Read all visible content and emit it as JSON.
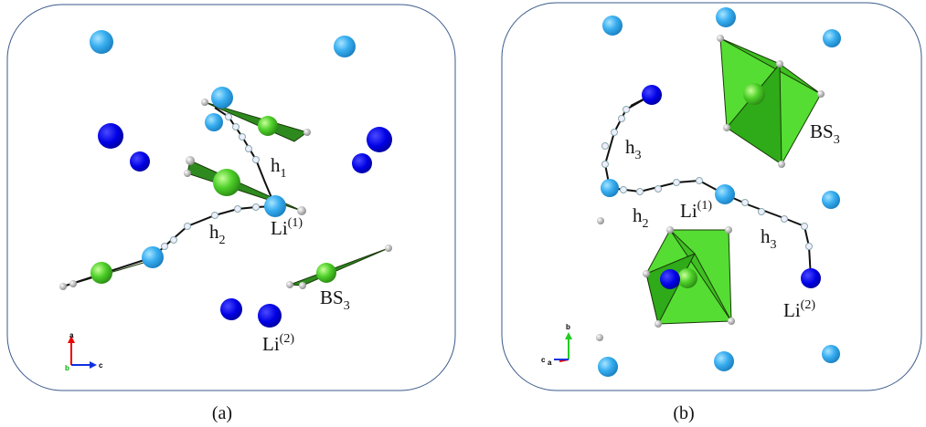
{
  "panels": [
    {
      "caption": "(a)",
      "labels": [
        {
          "base": "h",
          "sub": "1"
        },
        {
          "base": "h",
          "sub": "2"
        },
        {
          "base": "Li",
          "sup": "(1)"
        },
        {
          "base": "BS",
          "sub": "3"
        },
        {
          "base": "Li",
          "sup": "(2)"
        }
      ],
      "axes": [
        "a",
        "b",
        "c"
      ]
    },
    {
      "caption": "(b)",
      "labels": [
        {
          "base": "h",
          "sub": "3"
        },
        {
          "base": "BS",
          "sub": "3"
        },
        {
          "base": "Li",
          "sup": "(1)"
        },
        {
          "base": "h",
          "sub": "2"
        },
        {
          "base": "h",
          "sub": "3"
        },
        {
          "base": "Li",
          "sup": "(2)"
        }
      ],
      "axes": [
        "b",
        "c",
        "a"
      ]
    }
  ]
}
